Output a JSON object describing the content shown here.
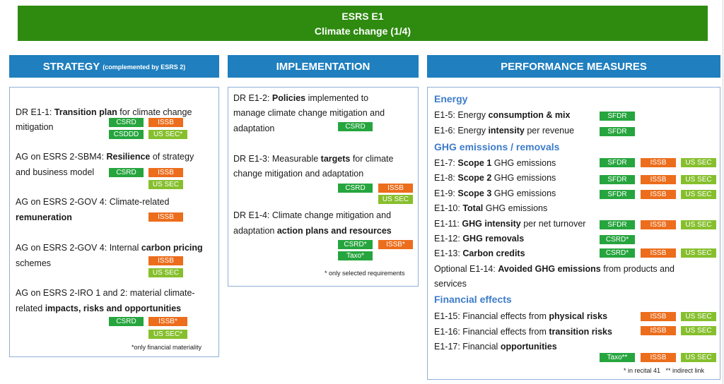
{
  "title": {
    "line1": "ESRS E1",
    "line2": "Climate change (1/4)"
  },
  "columns": {
    "strategy": {
      "header": "STRATEGY",
      "sub": "(complemented by ESRS 2)"
    },
    "implementation": {
      "header": "IMPLEMENTATION"
    },
    "performance": {
      "header": "PERFORMANCE MEASURES"
    }
  },
  "tags": {
    "csrd": "CSRD",
    "csddd": "CSDDD",
    "issb": "ISSB",
    "ussec": "US SEC",
    "ussec_star": "US SEC*",
    "issb_star": "ISSB*",
    "csrd_star": "CSRD*",
    "taxo_star": "Taxo*",
    "sfdr": "SFDR",
    "taxo_2star": "Taxo**"
  },
  "strategy": {
    "i1": {
      "p1": "DR E1-1: ",
      "b1": "Transition plan",
      "p2": " for climate change",
      "l2": "mitigation"
    },
    "i2": {
      "p1": "AG on ESRS 2-SBM4: ",
      "b1": "Resilience",
      "p2": " of strategy",
      "l2": "and business model"
    },
    "i3": {
      "p1": "AG on ESRS 2-GOV 4: Climate-related",
      "b2": "remuneration"
    },
    "i4": {
      "p1": "AG on ESRS 2-GOV 4: Internal ",
      "b1": "carbon pricing",
      "l2": "schemes"
    },
    "i5": {
      "p1": "AG on ESRS 2-IRO 1 and 2: material climate-",
      "l2p": "related ",
      "b2": "impacts, risks and opportunities"
    },
    "note": "*only financial materiality"
  },
  "implementation": {
    "i1": {
      "p1": "DR E1-2: ",
      "b1": "Policies",
      "p2": " implemented to",
      "l2": "manage climate change mitigation and",
      "l3": "adaptation"
    },
    "i2": {
      "p1": "DR E1-3: Measurable ",
      "b1": "targets",
      "p2": " for climate",
      "l2": "change mitigation and adaptation"
    },
    "i3": {
      "p1": "DR E1-4: Climate change mitigation and",
      "l2p": "adaptation ",
      "b2": "action plans and resources"
    },
    "note": "* only selected requirements"
  },
  "performance": {
    "energy": "Energy",
    "e15": {
      "p": "E1-5: Energy ",
      "b": "consumption & mix"
    },
    "e16": {
      "p": "E1-6: Energy ",
      "b": "intensity",
      "s": " per revenue"
    },
    "ghg": "GHG emissions / removals",
    "e17": {
      "p": "E1-7: ",
      "b": "Scope 1",
      "s": " GHG emissions"
    },
    "e18": {
      "p": "E1-8: ",
      "b": "Scope 2",
      "s": " GHG emissions"
    },
    "e19": {
      "p": "E1-9: ",
      "b": "Scope 3",
      "s": " GHG emissions"
    },
    "e110": {
      "p": "E1-10: ",
      "b": "Total",
      "s": " GHG emissions"
    },
    "e111": {
      "p": "E1-11: ",
      "b": "GHG intensity",
      "s": " per net turnover"
    },
    "e112": {
      "p": "E1-12: ",
      "b": "GHG removals"
    },
    "e113": {
      "p": "E1-13: ",
      "b": "Carbon credits"
    },
    "e114": {
      "p": "Optional E1-14: ",
      "b": "Avoided GHG emissions",
      "s": " from products and",
      "l2": "services"
    },
    "financial": "Financial effects",
    "e115": {
      "p": "E1-15: Financial effects from ",
      "b": "physical risks"
    },
    "e116": {
      "p": "E1-16: Financial effects from ",
      "b": "transition risks"
    },
    "e117": {
      "p": "E1-17: Financial ",
      "b": "opportunities"
    },
    "note": "* in recital 41   ** indirect link"
  },
  "colors": {
    "title_green": "#2e8b10",
    "header_blue": "#1f7fbf",
    "tag_green": "#26a53e",
    "tag_orange": "#ec6d1c",
    "tag_lime": "#86bf2d",
    "category_blue": "#3d7cc9"
  }
}
